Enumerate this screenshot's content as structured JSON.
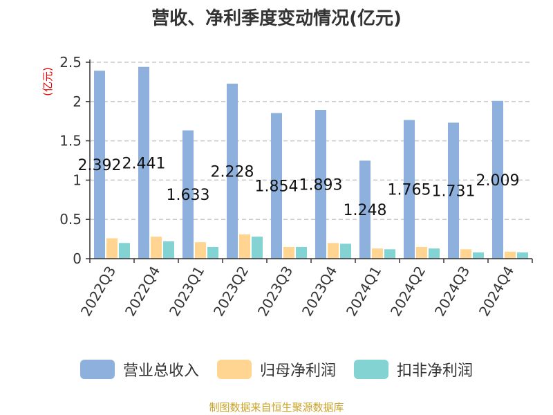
{
  "chart_data": {
    "type": "bar",
    "title": "营收、净利季度变动情况(亿元)",
    "ylabel": "(亿元)",
    "ylim": [
      0,
      2.5
    ],
    "yticks": [
      "0",
      "0.5",
      "1",
      "1.5",
      "2",
      "2.5"
    ],
    "categories": [
      "2022Q3",
      "2022Q4",
      "2023Q1",
      "2023Q2",
      "2023Q3",
      "2023Q4",
      "2024Q1",
      "2024Q2",
      "2024Q3",
      "2024Q4"
    ],
    "series": [
      {
        "name": "营业总收入",
        "color": "#8eb0dc",
        "values": [
          2.392,
          2.441,
          1.633,
          2.228,
          1.854,
          1.893,
          1.248,
          1.765,
          1.731,
          2.009
        ],
        "labels": [
          "2.392",
          "2.441",
          "1.633",
          "2.228",
          "1.854",
          "1.893",
          "1.248",
          "1.765",
          "1.731",
          "2.009"
        ]
      },
      {
        "name": "归母净利润",
        "color": "#ffd591",
        "values": [
          0.26,
          0.28,
          0.21,
          0.31,
          0.15,
          0.2,
          0.13,
          0.15,
          0.12,
          0.09
        ]
      },
      {
        "name": "扣非净利润",
        "color": "#83d3d3",
        "values": [
          0.2,
          0.22,
          0.15,
          0.28,
          0.15,
          0.19,
          0.12,
          0.13,
          0.08,
          0.08
        ]
      }
    ],
    "grid": true,
    "legend_position": "bottom"
  },
  "source": "制图数据来自恒生聚源数据库"
}
